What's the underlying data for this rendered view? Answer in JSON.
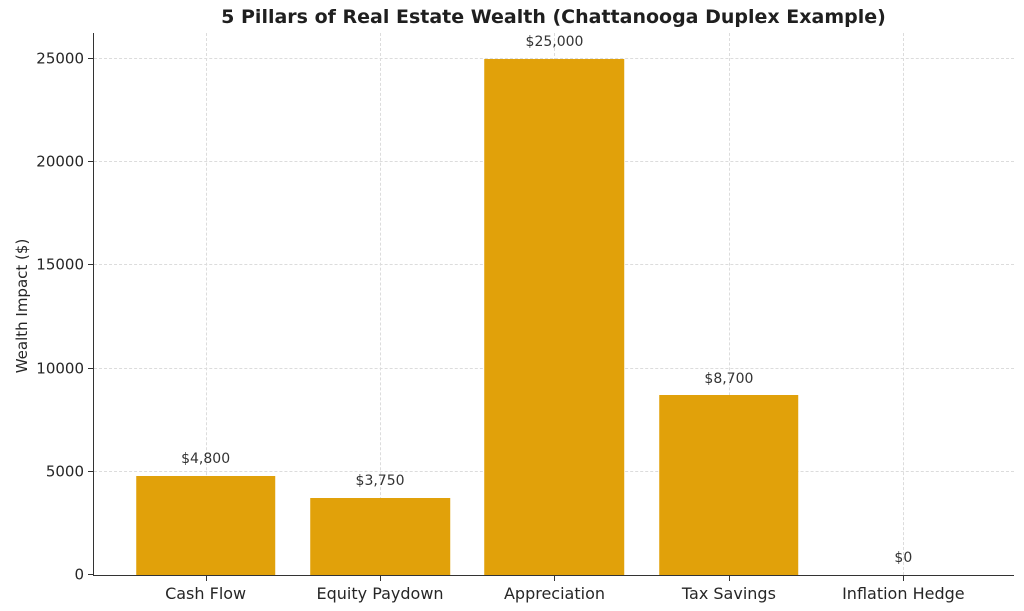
{
  "chart_data": {
    "type": "bar",
    "title": "5 Pillars of Real Estate Wealth (Chattanooga Duplex Example)",
    "xlabel": "",
    "ylabel": "Wealth Impact ($)",
    "categories": [
      "Cash Flow",
      "Equity Paydown",
      "Appreciation",
      "Tax Savings",
      "Inflation Hedge"
    ],
    "values": [
      4800,
      3750,
      25000,
      8700,
      0
    ],
    "value_labels": [
      "$4,800",
      "$3,750",
      "$25,000",
      "$8,700",
      "$0"
    ],
    "yticks": [
      0,
      5000,
      10000,
      15000,
      20000,
      25000
    ],
    "ytick_labels": [
      "0",
      "5000",
      "10000",
      "15000",
      "20000",
      "25000"
    ],
    "ylim": [
      0,
      26300
    ],
    "bar_color": "#e1a10a",
    "grid": "on",
    "grid_style": "dashed",
    "legend": "none",
    "spines": [
      "left",
      "bottom"
    ]
  }
}
